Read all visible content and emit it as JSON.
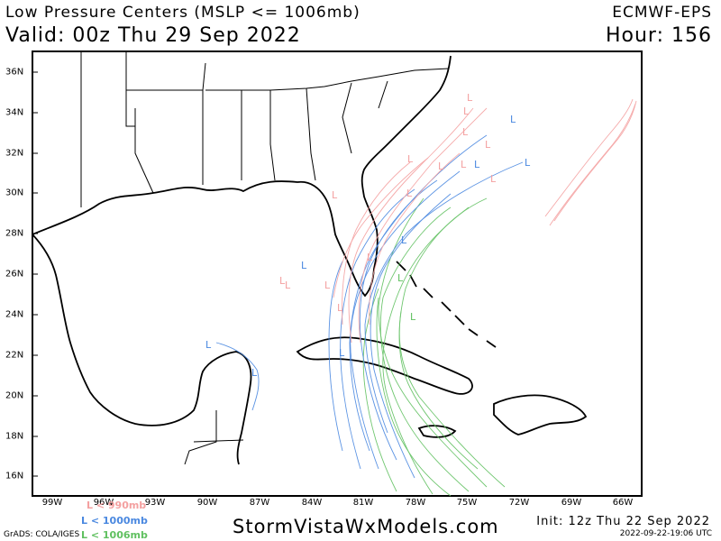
{
  "header": {
    "title": "Low Pressure Centers (MSLP <= 1006mb)",
    "model": "ECMWF-EPS",
    "valid": "Valid: 00z Thu 29 Sep 2022",
    "hour": "Hour: 156"
  },
  "axes": {
    "longitudes": [
      "99W",
      "96W",
      "93W",
      "90W",
      "87W",
      "84W",
      "81W",
      "78W",
      "75W",
      "72W",
      "69W",
      "66W"
    ],
    "latitudes": [
      "36N",
      "34N",
      "32N",
      "30N",
      "28N",
      "26N",
      "24N",
      "22N",
      "20N",
      "18N",
      "16N"
    ]
  },
  "legend": {
    "red_label": "L < 990mb",
    "blue_label": "L < 1000mb",
    "green_label": "L < 1006mb",
    "colors": {
      "red": "#f4a0a0",
      "blue": "#4a88e0",
      "green": "#60c060"
    }
  },
  "footer": {
    "site": "StormVistaWxModels.com",
    "init": "Init: 12z Thu 22 Sep 2022",
    "timestamp": "2022-09-22-19:06 UTC",
    "grads": "GrADS: COLA/IGES"
  }
}
